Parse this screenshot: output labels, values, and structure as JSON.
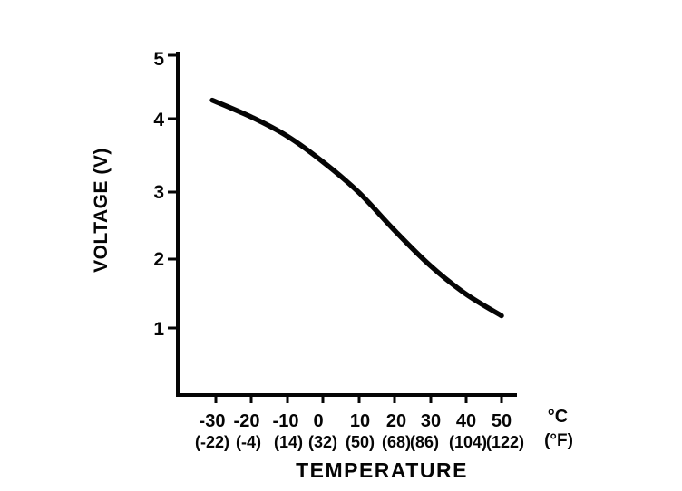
{
  "figure": {
    "background": "#ffffff",
    "ink_color": "#050505"
  },
  "chart_data": {
    "type": "line",
    "title": "",
    "xlabel": "TEMPERATURE",
    "ylabel": "VOLTAGE (V)",
    "x_unit_primary": "°C",
    "x_unit_secondary": "(°F)",
    "grid": false,
    "legend": "none",
    "ylim": [
      0,
      5
    ],
    "xlim_c": [
      -40,
      55
    ],
    "y_ticks": [
      "5",
      "4",
      "3",
      "2",
      "1"
    ],
    "x_ticks_c": [
      "-30",
      "-20",
      "-10",
      "0",
      "10",
      "20",
      "30",
      "40",
      "50"
    ],
    "x_ticks_f": [
      "(-22)",
      "(-4)",
      "(14)",
      "(32)",
      "(50)",
      "(68)",
      "(86)",
      "(104)",
      "(122)"
    ],
    "series": [
      {
        "name": "voltage-vs-temperature",
        "x_c": [
          -31,
          -20,
          -10,
          0,
          10,
          20,
          30,
          40,
          50
        ],
        "y_v": [
          4.35,
          4.1,
          3.82,
          3.44,
          2.99,
          2.43,
          1.91,
          1.49,
          1.17
        ]
      }
    ]
  }
}
